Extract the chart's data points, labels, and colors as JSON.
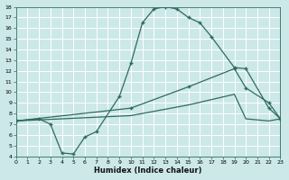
{
  "xlabel": "Humidex (Indice chaleur)",
  "bg_color": "#cce8e8",
  "line_color": "#2e6b60",
  "grid_color": "#b8d8d8",
  "xlim": [
    0,
    23
  ],
  "ylim": [
    4,
    18
  ],
  "xtick_labels": [
    "0",
    "1",
    "2",
    "3",
    "4",
    "5",
    "6",
    "7",
    "8",
    "9",
    "10",
    "11",
    "12",
    "13",
    "14",
    "15",
    "16",
    "17",
    "18",
    "19",
    "20",
    "21",
    "22",
    "23"
  ],
  "ytick_labels": [
    "4",
    "5",
    "6",
    "7",
    "8",
    "9",
    "10",
    "11",
    "12",
    "13",
    "14",
    "15",
    "16",
    "17",
    "18"
  ],
  "curve1_x": [
    0,
    2,
    3,
    4,
    5,
    6,
    7,
    9,
    10,
    11,
    12,
    13,
    14,
    15,
    16,
    17,
    19,
    20,
    22,
    23
  ],
  "curve1_y": [
    7.3,
    7.5,
    7.0,
    4.3,
    4.2,
    5.8,
    6.3,
    9.6,
    12.7,
    16.5,
    17.8,
    18.0,
    17.8,
    17.0,
    16.5,
    15.2,
    12.3,
    12.2,
    8.5,
    7.5
  ],
  "curve2_x": [
    0,
    10,
    15,
    19,
    20,
    22,
    23
  ],
  "curve2_y": [
    7.3,
    8.5,
    10.5,
    12.2,
    10.4,
    9.0,
    7.5
  ],
  "curve3_x": [
    0,
    10,
    15,
    19,
    20,
    22,
    23
  ],
  "curve3_y": [
    7.3,
    7.8,
    8.8,
    9.8,
    7.5,
    7.3,
    7.5
  ]
}
